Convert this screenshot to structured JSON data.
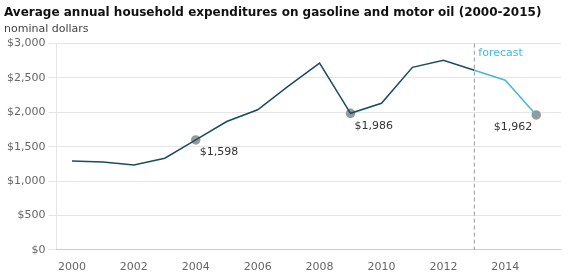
{
  "chart_data": {
    "type": "line",
    "title": "Average annual household expenditures on gasoline and motor oil (2000-2015)",
    "subtitle": "nominal dollars",
    "series": [
      {
        "type": "line",
        "color": "#1a4d5c",
        "x": [
          2000,
          2001,
          2002,
          2003,
          2004,
          2005,
          2006,
          2007,
          2008,
          2009,
          2010,
          2011,
          2012,
          2013
        ],
        "values": [
          1292,
          1279,
          1235,
          1333,
          1598,
          1866,
          2037,
          2384,
          2715,
          1986,
          2132,
          2655,
          2756,
          2611
        ]
      },
      {
        "type": "line",
        "color": "#4ab8d4",
        "x": [
          2013,
          2014,
          2015
        ],
        "values": [
          2611,
          2468,
          1962
        ]
      },
      {
        "type": "scatter",
        "marker": "circle",
        "color": "#999999",
        "data_labels": true,
        "x": [
          2004,
          2009,
          2015
        ],
        "values": [
          1598,
          1986,
          1962
        ],
        "value_labels": [
          "$1,598",
          "$1,986",
          "$1,962"
        ]
      }
    ],
    "annotations": [
      {
        "text": "forecast",
        "x": 2013,
        "color": "#4ab8d4",
        "line_style": "dashed"
      }
    ],
    "xlim": [
      1999.5,
      2015.8
    ],
    "xticks": [
      2000,
      2002,
      2004,
      2006,
      2008,
      2010,
      2012,
      2014
    ],
    "ylim": [
      0,
      3000
    ],
    "yticks": [
      {
        "value": 0,
        "label": "$0"
      },
      {
        "value": 500,
        "label": "$500"
      },
      {
        "value": 1000,
        "label": "$1,000"
      },
      {
        "value": 1500,
        "label": "$1,500"
      },
      {
        "value": 2000,
        "label": "$2,000"
      },
      {
        "value": 2500,
        "label": "$2,500"
      },
      {
        "value": 3000,
        "label": "$3,000"
      }
    ],
    "grid": "y"
  }
}
